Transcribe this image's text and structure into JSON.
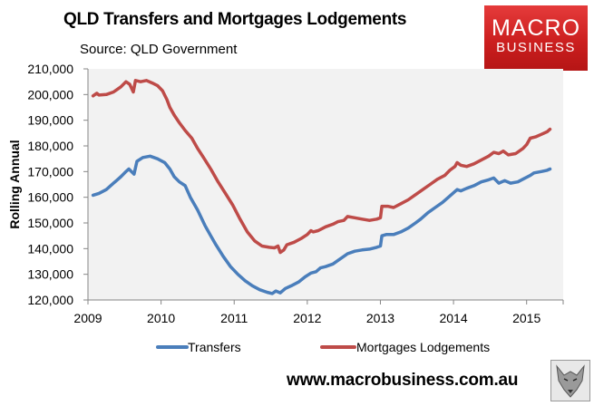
{
  "header": {
    "title": "QLD Transfers and Mortgages Lodgements",
    "source": "Source: QLD Government"
  },
  "logo": {
    "line1": "MACRO",
    "line2": "BUSINESS"
  },
  "footer": {
    "url": "www.macrobusiness.com.au"
  },
  "colors": {
    "transfers": "#4a7ebb",
    "mortgages": "#be4b48",
    "plot_bg": "#f2f2f2",
    "logo_red": "#d62828"
  },
  "chart_data": {
    "type": "line",
    "title": "QLD Transfers and Mortgages Lodgements",
    "xlabel": "",
    "ylabel": "Rolling Annual",
    "xlim": [
      2009.0,
      2015.5
    ],
    "ylim": [
      120000,
      210000
    ],
    "x_ticks": [
      "2009",
      "2010",
      "2011",
      "2012",
      "2013",
      "2014",
      "2015"
    ],
    "x_tick_values": [
      2009,
      2010,
      2011,
      2012,
      2013,
      2014,
      2015
    ],
    "y_ticks": [
      "120,000",
      "130,000",
      "140,000",
      "150,000",
      "160,000",
      "170,000",
      "180,000",
      "190,000",
      "200,000",
      "210,000"
    ],
    "y_tick_values": [
      120000,
      130000,
      140000,
      150000,
      160000,
      170000,
      180000,
      190000,
      200000,
      210000
    ],
    "grid": false,
    "legend": "bottom",
    "series": [
      {
        "name": "Transfers",
        "color": "#4a7ebb",
        "points": [
          [
            2009.07,
            160800
          ],
          [
            2009.15,
            161500
          ],
          [
            2009.25,
            163000
          ],
          [
            2009.35,
            165500
          ],
          [
            2009.45,
            168000
          ],
          [
            2009.52,
            170000
          ],
          [
            2009.56,
            171000
          ],
          [
            2009.63,
            169000
          ],
          [
            2009.67,
            174000
          ],
          [
            2009.75,
            175500
          ],
          [
            2009.85,
            176000
          ],
          [
            2009.95,
            175000
          ],
          [
            2010.05,
            173500
          ],
          [
            2010.12,
            171000
          ],
          [
            2010.18,
            168000
          ],
          [
            2010.25,
            166000
          ],
          [
            2010.33,
            164500
          ],
          [
            2010.4,
            160000
          ],
          [
            2010.5,
            155000
          ],
          [
            2010.6,
            149000
          ],
          [
            2010.68,
            145000
          ],
          [
            2010.75,
            141500
          ],
          [
            2010.85,
            137000
          ],
          [
            2010.95,
            133000
          ],
          [
            2011.05,
            130000
          ],
          [
            2011.15,
            127500
          ],
          [
            2011.25,
            125500
          ],
          [
            2011.35,
            124000
          ],
          [
            2011.45,
            123000
          ],
          [
            2011.52,
            122500
          ],
          [
            2011.57,
            123500
          ],
          [
            2011.63,
            122800
          ],
          [
            2011.7,
            124500
          ],
          [
            2011.78,
            125500
          ],
          [
            2011.88,
            127000
          ],
          [
            2011.97,
            129000
          ],
          [
            2012.05,
            130500
          ],
          [
            2012.12,
            131000
          ],
          [
            2012.18,
            132500
          ],
          [
            2012.25,
            133000
          ],
          [
            2012.35,
            134000
          ],
          [
            2012.45,
            136000
          ],
          [
            2012.55,
            138000
          ],
          [
            2012.65,
            139000
          ],
          [
            2012.75,
            139500
          ],
          [
            2012.85,
            139800
          ],
          [
            2012.95,
            140500
          ],
          [
            2013.0,
            141000
          ],
          [
            2013.02,
            145000
          ],
          [
            2013.08,
            145500
          ],
          [
            2013.18,
            145500
          ],
          [
            2013.28,
            146500
          ],
          [
            2013.38,
            148000
          ],
          [
            2013.48,
            150000
          ],
          [
            2013.55,
            151500
          ],
          [
            2013.65,
            154000
          ],
          [
            2013.75,
            156000
          ],
          [
            2013.85,
            158000
          ],
          [
            2013.95,
            160500
          ],
          [
            2014.05,
            163000
          ],
          [
            2014.1,
            162500
          ],
          [
            2014.18,
            163500
          ],
          [
            2014.28,
            164500
          ],
          [
            2014.38,
            166000
          ],
          [
            2014.48,
            166800
          ],
          [
            2014.55,
            167500
          ],
          [
            2014.62,
            165500
          ],
          [
            2014.7,
            166500
          ],
          [
            2014.78,
            165500
          ],
          [
            2014.88,
            166000
          ],
          [
            2014.98,
            167500
          ],
          [
            2015.05,
            168500
          ],
          [
            2015.1,
            169500
          ],
          [
            2015.2,
            170000
          ],
          [
            2015.28,
            170500
          ],
          [
            2015.32,
            171000
          ]
        ]
      },
      {
        "name": "Mortgages Lodgements",
        "color": "#be4b48",
        "points": [
          [
            2009.07,
            199500
          ],
          [
            2009.12,
            200500
          ],
          [
            2009.15,
            199800
          ],
          [
            2009.25,
            200000
          ],
          [
            2009.35,
            201000
          ],
          [
            2009.45,
            203000
          ],
          [
            2009.52,
            205000
          ],
          [
            2009.57,
            204000
          ],
          [
            2009.62,
            201000
          ],
          [
            2009.65,
            205500
          ],
          [
            2009.72,
            205000
          ],
          [
            2009.8,
            205500
          ],
          [
            2009.88,
            204500
          ],
          [
            2009.95,
            203500
          ],
          [
            2010.02,
            201500
          ],
          [
            2010.08,
            198000
          ],
          [
            2010.12,
            195000
          ],
          [
            2010.18,
            192000
          ],
          [
            2010.25,
            189000
          ],
          [
            2010.33,
            186000
          ],
          [
            2010.42,
            183000
          ],
          [
            2010.5,
            179000
          ],
          [
            2010.58,
            175500
          ],
          [
            2010.68,
            171000
          ],
          [
            2010.78,
            166000
          ],
          [
            2010.88,
            161500
          ],
          [
            2010.98,
            157000
          ],
          [
            2011.08,
            151500
          ],
          [
            2011.18,
            146500
          ],
          [
            2011.28,
            143000
          ],
          [
            2011.38,
            141000
          ],
          [
            2011.48,
            140500
          ],
          [
            2011.55,
            140300
          ],
          [
            2011.6,
            141000
          ],
          [
            2011.63,
            138500
          ],
          [
            2011.68,
            139500
          ],
          [
            2011.72,
            141500
          ],
          [
            2011.82,
            142500
          ],
          [
            2011.92,
            144000
          ],
          [
            2012.0,
            145500
          ],
          [
            2012.05,
            147000
          ],
          [
            2012.08,
            146500
          ],
          [
            2012.15,
            147000
          ],
          [
            2012.25,
            148500
          ],
          [
            2012.35,
            149500
          ],
          [
            2012.42,
            150500
          ],
          [
            2012.5,
            151000
          ],
          [
            2012.55,
            152500
          ],
          [
            2012.65,
            152000
          ],
          [
            2012.75,
            151500
          ],
          [
            2012.85,
            151000
          ],
          [
            2012.95,
            151500
          ],
          [
            2013.0,
            152000
          ],
          [
            2013.02,
            156500
          ],
          [
            2013.1,
            156500
          ],
          [
            2013.18,
            156000
          ],
          [
            2013.28,
            157500
          ],
          [
            2013.38,
            159000
          ],
          [
            2013.48,
            161000
          ],
          [
            2013.58,
            163000
          ],
          [
            2013.68,
            165000
          ],
          [
            2013.78,
            167000
          ],
          [
            2013.88,
            168500
          ],
          [
            2013.95,
            170500
          ],
          [
            2014.02,
            172000
          ],
          [
            2014.05,
            173500
          ],
          [
            2014.1,
            172500
          ],
          [
            2014.18,
            172000
          ],
          [
            2014.28,
            173000
          ],
          [
            2014.38,
            174500
          ],
          [
            2014.48,
            176000
          ],
          [
            2014.55,
            177500
          ],
          [
            2014.62,
            177000
          ],
          [
            2014.68,
            178000
          ],
          [
            2014.75,
            176500
          ],
          [
            2014.85,
            177000
          ],
          [
            2014.95,
            179000
          ],
          [
            2015.0,
            180500
          ],
          [
            2015.05,
            183000
          ],
          [
            2015.12,
            183500
          ],
          [
            2015.2,
            184500
          ],
          [
            2015.28,
            185500
          ],
          [
            2015.32,
            186500
          ]
        ]
      }
    ]
  }
}
